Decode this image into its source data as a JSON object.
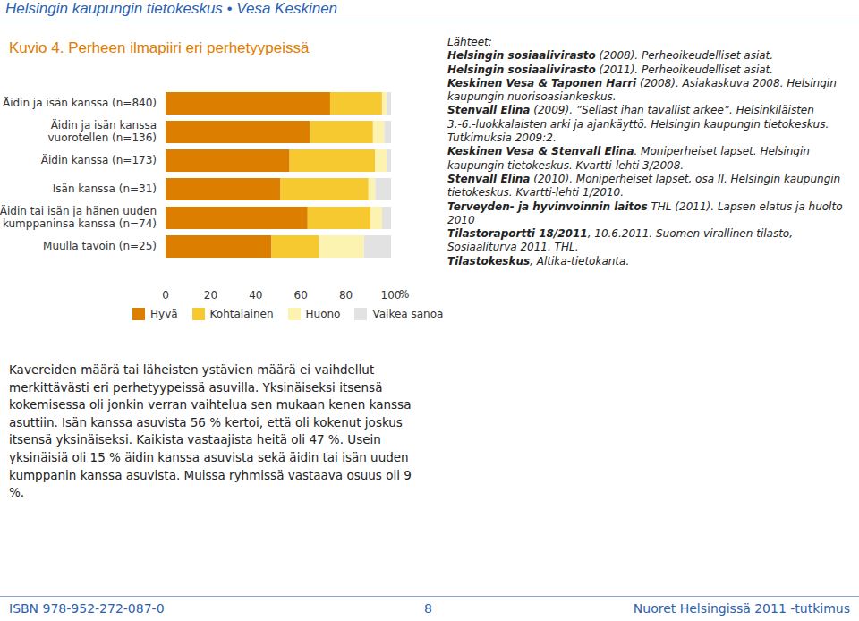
{
  "header": "Helsingin kaupungin tietokeskus • Vesa Keskinen",
  "chart_data": {
    "type": "bar",
    "title": "Kuvio 4. Perheen ilmapiiri eri perhetyypeissä",
    "orientation": "horizontal",
    "stacked": true,
    "legend": "bottom",
    "categories": [
      "Äidin ja isän kanssa (n=840)",
      "Äidin ja isän kanssa vuorotellen (n=136)",
      "Äidin kanssa (n=173)",
      "Isän kanssa (n=31)",
      "Äidin tai isän ja hänen uuden kumppaninsa kanssa (n=74)",
      "Muulla tavoin (n=25)"
    ],
    "series": [
      {
        "name": "Hyvä",
        "color": "#dc7f00",
        "values": [
          73,
          64,
          55,
          51,
          63,
          47
        ]
      },
      {
        "name": "Kohtalainen",
        "color": "#f7c930",
        "values": [
          23,
          28,
          38,
          39,
          28,
          21
        ]
      },
      {
        "name": "Huono",
        "color": "#fcf3b0",
        "values": [
          2,
          5,
          5,
          3,
          5,
          20
        ]
      },
      {
        "name": "Vaikea sanoa",
        "color": "#e2e2e2",
        "values": [
          2,
          3,
          2,
          7,
          4,
          12
        ]
      }
    ],
    "xlim": [
      0,
      100
    ],
    "xticks": [
      0,
      20,
      40,
      60,
      80,
      100
    ],
    "x_label": "%"
  },
  "sources": {
    "title": "Lähteet:",
    "items": [
      {
        "author": "Helsingin sosiaalivirasto",
        "text": " (2008). Perheoikeudelliset asiat."
      },
      {
        "author": "Helsingin sosiaalivirasto",
        "text": " (2011). Perheoikeudelliset asiat."
      },
      {
        "author": "Keskinen Vesa & Taponen Harri",
        "text": " (2008). Asiakaskuva 2008. Helsingin kaupungin nuorisoasiankeskus."
      },
      {
        "author": "Stenvall Elina",
        "text": " (2009). ”Sellast ihan tavallist arkee”. Helsinkiläisten 3.-6.-luokkalaisten arki ja ajankäyttö. Helsingin kaupungin tietokeskus. Tutkimuksia 2009:2."
      },
      {
        "author": "Keskinen Vesa & Stenvall Elina",
        "text": ". Moniperheiset lapset. Helsingin kaupungin tietokeskus. Kvartti-lehti 3/2008."
      },
      {
        "author": "Stenvall Elina",
        "text": " (2010). Moniperheiset lapset, osa II. Helsingin kaupungin tietokeskus. Kvartti-lehti 1/2010."
      },
      {
        "author": "Terveyden- ja hyvinvoinnin laitos",
        "text": " THL (2011). Lapsen elatus ja huolto 2010"
      },
      {
        "author": "Tilastoraportti 18/2011",
        "text": ", 10.6.2011. Suomen virallinen tilasto, Sosiaaliturva 2011. THL."
      },
      {
        "author": "Tilastokeskus",
        "text": ", Altika-tietokanta."
      }
    ]
  },
  "body": "Kavereiden määrä tai läheisten ystävien määrä ei vaihdellut merkittävästi eri perhetyypeissä asuvilla. Yksinäiseksi itsensä kokemisessa oli jonkin verran vaihtelua sen mukaan kenen kanssa asuttiin. Isän kanssa asuvista 56 % kertoi, että oli kokenut joskus itsensä yksinäiseksi. Kaikista vastaajista heitä oli 47 %. Usein yksinäisiä oli 15 % äidin kanssa asuvista sekä äidin tai isän uuden kumppanin kanssa asuvista. Muissa ryhmissä vastaava osuus oli 9 %.",
  "footer": {
    "isbn": "ISBN 978-952-272-087-0",
    "page": "8",
    "publication": "Nuoret Helsingissä 2011 -tutkimus"
  }
}
